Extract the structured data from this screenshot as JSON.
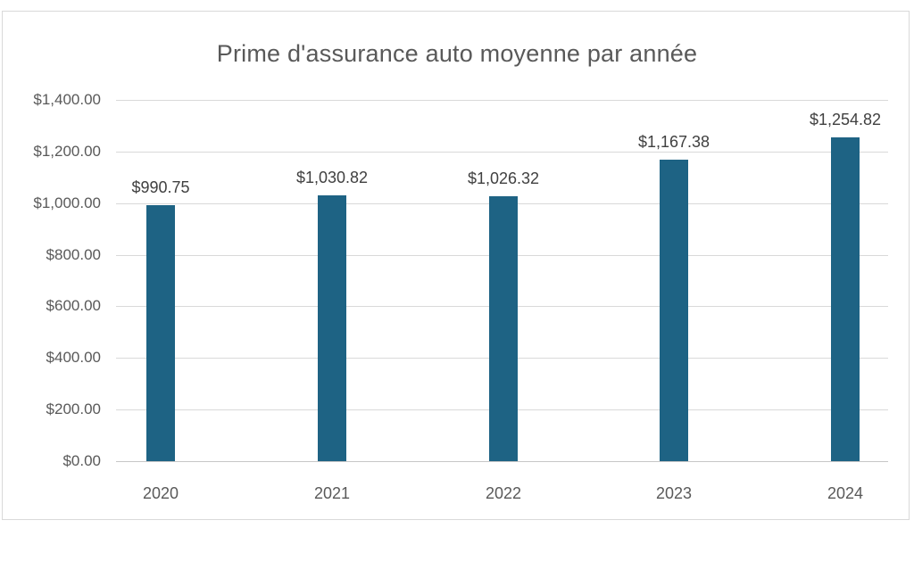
{
  "chart_data": {
    "type": "bar",
    "title": "Prime d'assurance auto moyenne par année",
    "categories": [
      "2020",
      "2021",
      "2022",
      "2023",
      "2024"
    ],
    "values": [
      990.75,
      1030.82,
      1026.32,
      1167.38,
      1254.82
    ],
    "data_labels": [
      "$990.75",
      "$1,030.82",
      "$1,026.32",
      "$1,167.38",
      "$1,254.82"
    ],
    "y_ticks": [
      "$1,400.00",
      "$1,200.00",
      "$1,000.00",
      "$800.00",
      "$600.00",
      "$400.00",
      "$200.00",
      "$0.00"
    ],
    "ylim": [
      0,
      1400
    ],
    "y_tick_step": 200,
    "grid": true,
    "legend_position": "none",
    "xlabel": "",
    "ylabel": ""
  },
  "colors": {
    "bar": "#1E6384",
    "grid_line": "#D9D9D9",
    "axis_line": "#C6C6C6",
    "frame_border": "#D9D9D9",
    "title_text": "#595959",
    "tick_text": "#595959",
    "data_label_text": "#404040",
    "background": "#FFFFFF"
  }
}
